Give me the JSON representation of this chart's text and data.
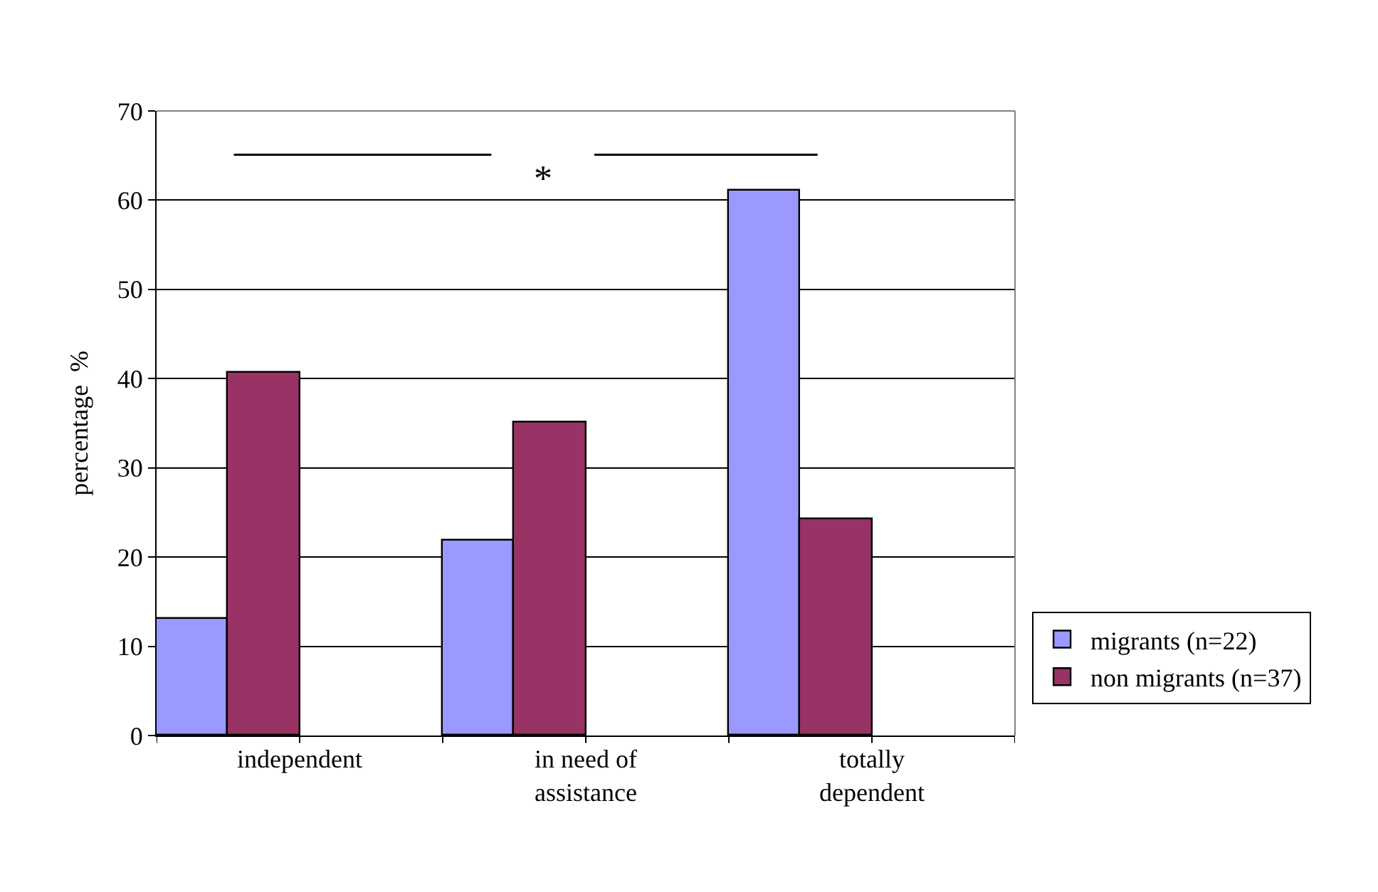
{
  "chart_data": {
    "type": "bar",
    "ylabel": "percentage  %",
    "categories": [
      "independent",
      "in need of\nassistance",
      "totally\ndependent"
    ],
    "series": [
      {
        "name": "migrants (n=22)",
        "color": "#9999ff",
        "values": [
          13,
          21.8,
          61
        ]
      },
      {
        "name": "non migrants (n=37)",
        "color": "#993366",
        "values": [
          40.6,
          35.1,
          24.3
        ]
      }
    ],
    "ylim": [
      0,
      70
    ],
    "yticks": [
      0,
      10,
      20,
      30,
      40,
      50,
      60,
      70
    ],
    "grid": "y",
    "legend": "right",
    "annotations": [
      "*"
    ]
  }
}
